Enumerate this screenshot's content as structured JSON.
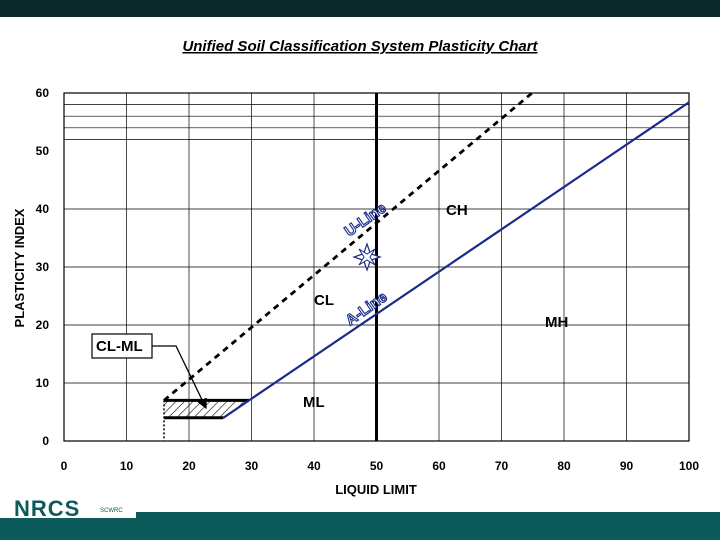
{
  "chart_data": {
    "type": "line",
    "title": "Unified Soil Classification System Plasticity Chart",
    "xlabel": "LIQUID LIMIT",
    "ylabel": "PLASTICITY INDEX",
    "xlim": [
      0,
      100
    ],
    "ylim": [
      0,
      60
    ],
    "x_ticks": [
      "0",
      "10",
      "20",
      "30",
      "40",
      "50",
      "60",
      "70",
      "80",
      "90",
      "100"
    ],
    "y_ticks": [
      "0",
      "10",
      "20",
      "30",
      "40",
      "50",
      "60"
    ],
    "grid": true,
    "series": [
      {
        "name": "A-Line",
        "style": "solid",
        "color": "#1a2a8a",
        "points": [
          [
            25.5,
            4
          ],
          [
            29.6,
            7
          ],
          [
            100,
            58.4
          ]
        ]
      },
      {
        "name": "U-Line",
        "style": "dashed",
        "color": "#000000",
        "points": [
          [
            16,
            7
          ],
          [
            74.9,
            60
          ]
        ]
      }
    ],
    "reference_lines": {
      "vertical_LL": 50,
      "cl_ml_band": [
        4,
        7
      ],
      "cl_ml_start_LL": 16
    },
    "zone_labels": [
      "CH",
      "CL",
      "CL-ML",
      "ML",
      "MH"
    ],
    "marker": {
      "type": "star",
      "x": 47,
      "y": 32
    },
    "colors": {
      "a_line": "#1a2a8a",
      "grid": "#000000",
      "top_bar": "#0c2a2a",
      "bottom_bar": "#0c5a5a"
    }
  },
  "footer": {
    "logo_text": "NRCS",
    "logo_sub": "SCWRC"
  }
}
